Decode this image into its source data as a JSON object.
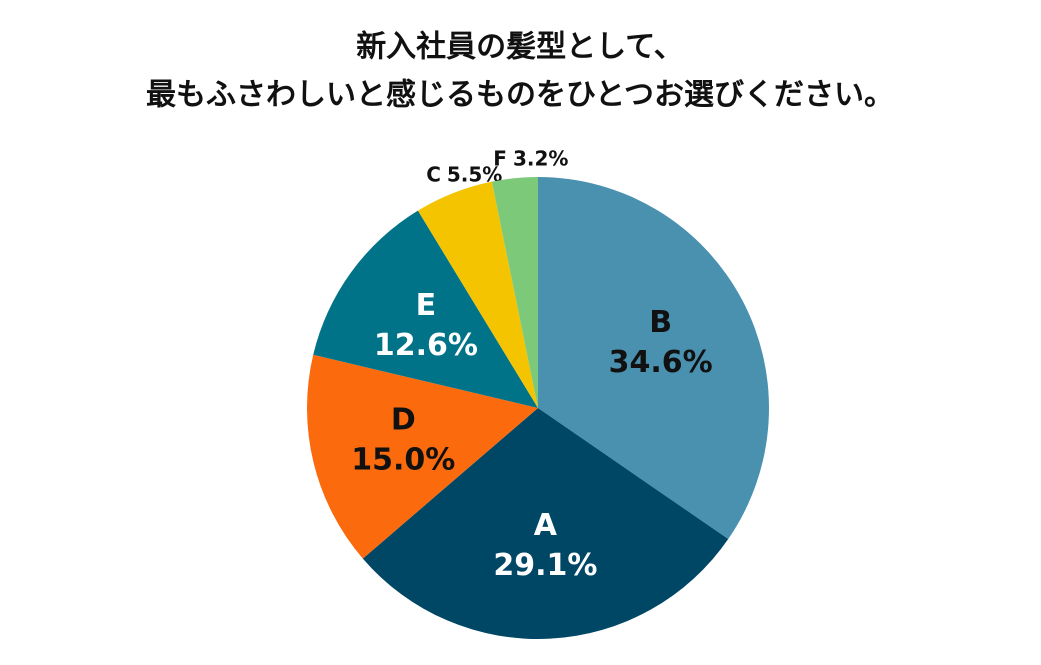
{
  "chart_data": {
    "type": "pie",
    "title": [
      "新入社員の髪型として、",
      "最もふさわしいと感じるものをひとつお選びください。"
    ],
    "categories": [
      "B",
      "A",
      "D",
      "E",
      "C",
      "F"
    ],
    "values": [
      34.6,
      29.1,
      15.0,
      12.6,
      5.5,
      3.2
    ],
    "value_labels": [
      "34.6%",
      "29.1%",
      "15.0%",
      "12.6%",
      "5.5%",
      "3.2%"
    ],
    "colors": [
      "#4a91b0",
      "#004766",
      "#fb6a0c",
      "#007388",
      "#f5c400",
      "#7dc97a"
    ]
  }
}
